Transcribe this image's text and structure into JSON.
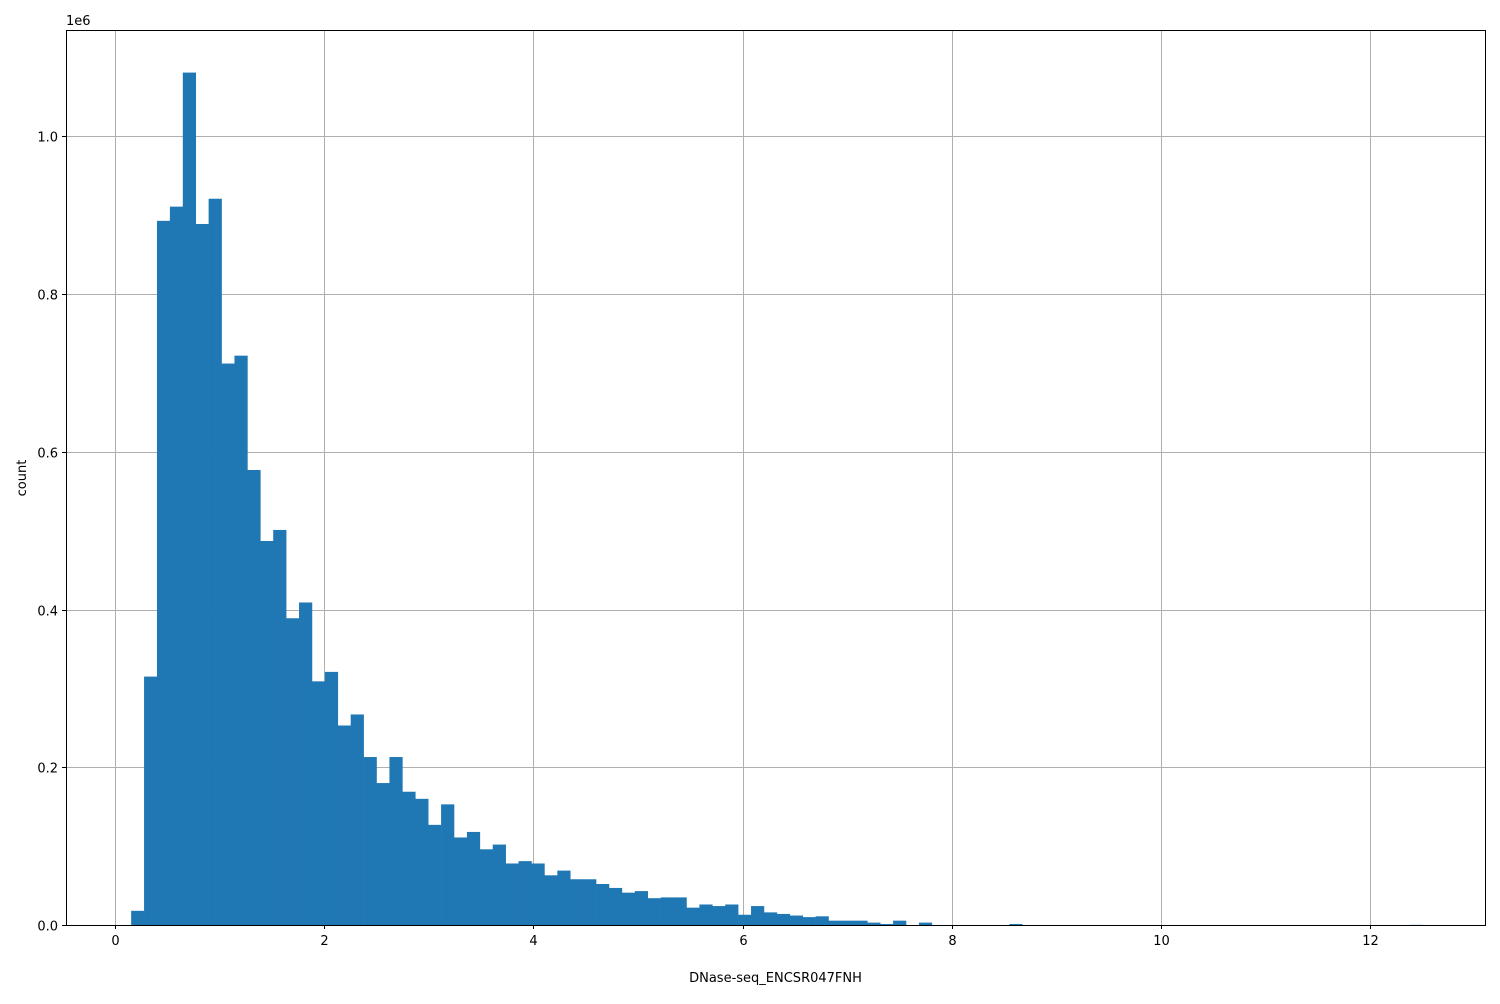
{
  "chart_data": {
    "type": "bar",
    "histogram": true,
    "xlabel": "DNase-seq_ENCSR047FNH",
    "ylabel": "count",
    "y_offset_label": "1e6",
    "xlim": [
      -0.47,
      13.1
    ],
    "ylim": [
      0,
      1.135
    ],
    "y_scale_factor": 1000000,
    "grid": true,
    "bar_color": "#1f77b4",
    "x_ticks": [
      "0",
      "2",
      "4",
      "6",
      "8",
      "10",
      "12"
    ],
    "y_ticks": [
      "0.0",
      "0.2",
      "0.4",
      "0.6",
      "0.8",
      "1.0"
    ],
    "bin_start": 0.153,
    "bin_width": 0.1235,
    "values": [
      0.018,
      0.315,
      0.893,
      0.911,
      1.081,
      0.889,
      0.921,
      0.712,
      0.722,
      0.577,
      0.487,
      0.501,
      0.389,
      0.409,
      0.309,
      0.321,
      0.253,
      0.267,
      0.213,
      0.18,
      0.213,
      0.169,
      0.16,
      0.127,
      0.153,
      0.111,
      0.118,
      0.096,
      0.102,
      0.078,
      0.081,
      0.078,
      0.063,
      0.069,
      0.058,
      0.058,
      0.052,
      0.047,
      0.041,
      0.043,
      0.034,
      0.035,
      0.035,
      0.022,
      0.026,
      0.024,
      0.026,
      0.013,
      0.024,
      0.016,
      0.014,
      0.012,
      0.01,
      0.011,
      0.0055,
      0.0055,
      0.0055,
      0.003,
      0.0013,
      0.0055,
      0,
      0.003,
      0,
      0,
      0,
      0,
      0,
      0,
      0.0013,
      0,
      0,
      0,
      0,
      0,
      0,
      0,
      0,
      0,
      0,
      0,
      0,
      0,
      0,
      0,
      0,
      0,
      0,
      0,
      0,
      0,
      0,
      0,
      0,
      0,
      0,
      0,
      0,
      0,
      0,
      0.0002
    ]
  }
}
